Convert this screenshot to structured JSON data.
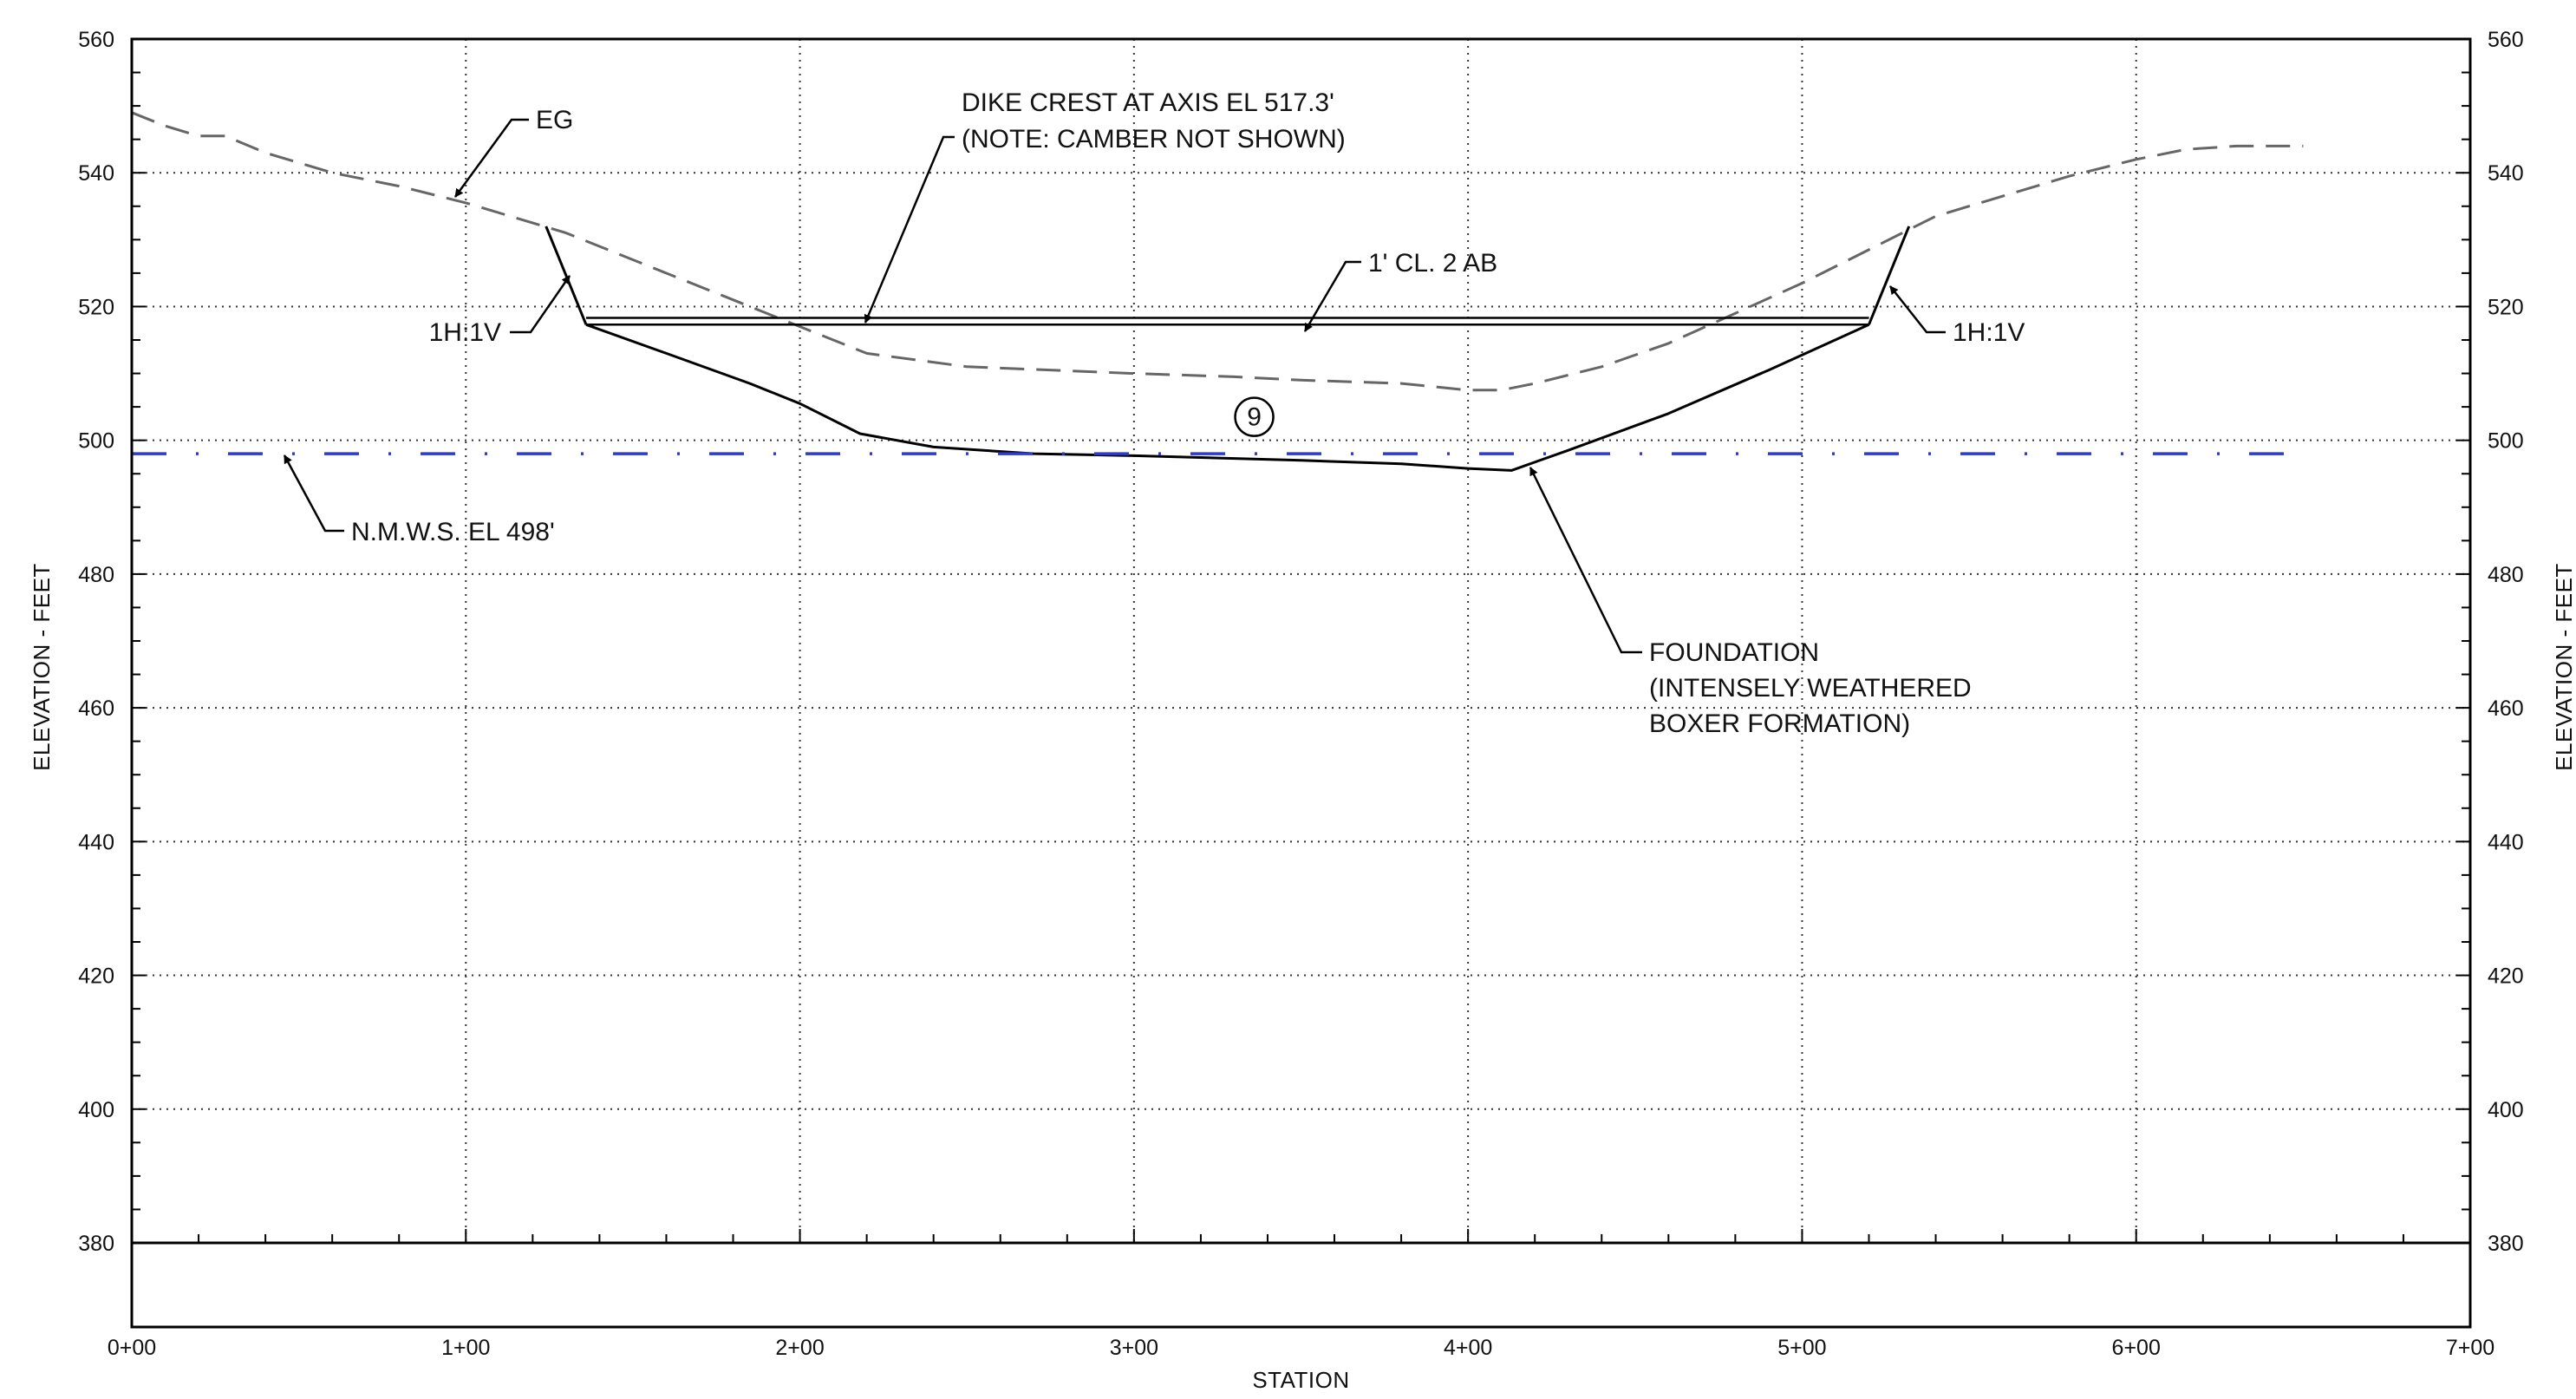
{
  "chart_data": {
    "type": "line",
    "title": "",
    "xlabel": "STATION",
    "ylabel_left": "ELEVATION - FEET",
    "ylabel_right": "ELEVATION - FEET",
    "xlim": [
      0,
      700
    ],
    "ylim": [
      380,
      560
    ],
    "x_tick_values": [
      0,
      100,
      200,
      300,
      400,
      500,
      600,
      700
    ],
    "x_tick_labels": [
      "0+00",
      "1+00",
      "2+00",
      "3+00",
      "4+00",
      "5+00",
      "6+00",
      "7+00"
    ],
    "y_tick_values": [
      380,
      400,
      420,
      440,
      460,
      480,
      500,
      520,
      540,
      560
    ],
    "y_tick_labels": [
      "380",
      "400",
      "420",
      "440",
      "460",
      "480",
      "500",
      "520",
      "540",
      "560"
    ],
    "grid": true,
    "series": [
      {
        "name": "EG",
        "style": "dashed",
        "color": "#666666",
        "x": [
          0,
          10,
          20,
          28,
          40,
          60,
          80,
          100,
          130,
          150,
          180,
          200,
          220,
          250,
          300,
          330,
          350,
          380,
          400,
          410,
          420,
          440,
          460,
          480,
          500,
          520,
          540,
          560,
          580,
          600,
          615,
          630,
          650
        ],
        "y": [
          549,
          547,
          545.5,
          545.5,
          543,
          540,
          538,
          535.5,
          531,
          527,
          521,
          517,
          513,
          511,
          510,
          509.5,
          509,
          508.5,
          507.5,
          507.5,
          508.5,
          511,
          514.5,
          519,
          523.5,
          528.5,
          533.5,
          536.5,
          539.5,
          542,
          543.5,
          544,
          544
        ]
      },
      {
        "name": "FOUNDATION",
        "style": "solid",
        "color": "#000000",
        "x": [
          136,
          160,
          185,
          200,
          218,
          240,
          270,
          300,
          350,
          380,
          400,
          413,
          430,
          460,
          490,
          520
        ],
        "y": [
          517.3,
          513,
          508.5,
          505.5,
          501,
          499,
          498,
          497.7,
          497,
          496.5,
          495.8,
          495.5,
          498.5,
          504,
          510.5,
          517.3
        ]
      },
      {
        "name": "N.M.W.S. EL 498'",
        "style": "dash-dot",
        "color": "#2d3bd6",
        "x": [
          0,
          650
        ],
        "y": [
          498,
          498
        ]
      }
    ],
    "dike": {
      "crest_elevation": 517.3,
      "crest_x": [
        136,
        520
      ],
      "ab_top_elevation": 518.3,
      "left_slope_x": [
        124,
        136
      ],
      "left_slope_y": [
        532,
        517.3
      ],
      "right_slope_x": [
        520,
        532
      ],
      "right_slope_y": [
        517.3,
        532
      ]
    },
    "base_line_elevation": 380,
    "section_marker": "9",
    "annotations": [
      {
        "id": "eg",
        "text": [
          "EG"
        ]
      },
      {
        "id": "crest",
        "text": [
          "DIKE CREST AT AXIS EL 517.3'",
          "(NOTE: CAMBER NOT SHOWN)"
        ]
      },
      {
        "id": "ab",
        "text": [
          "1' CL. 2 AB"
        ]
      },
      {
        "id": "slope_left",
        "text": [
          "1H:1V"
        ]
      },
      {
        "id": "slope_right",
        "text": [
          "1H:1V"
        ]
      },
      {
        "id": "nmws",
        "text": [
          "N.M.W.S. EL 498'"
        ]
      },
      {
        "id": "foundation",
        "text": [
          "FOUNDATION",
          "(INTENSELY WEATHERED",
          "BOXER FORMATION)"
        ]
      }
    ]
  }
}
